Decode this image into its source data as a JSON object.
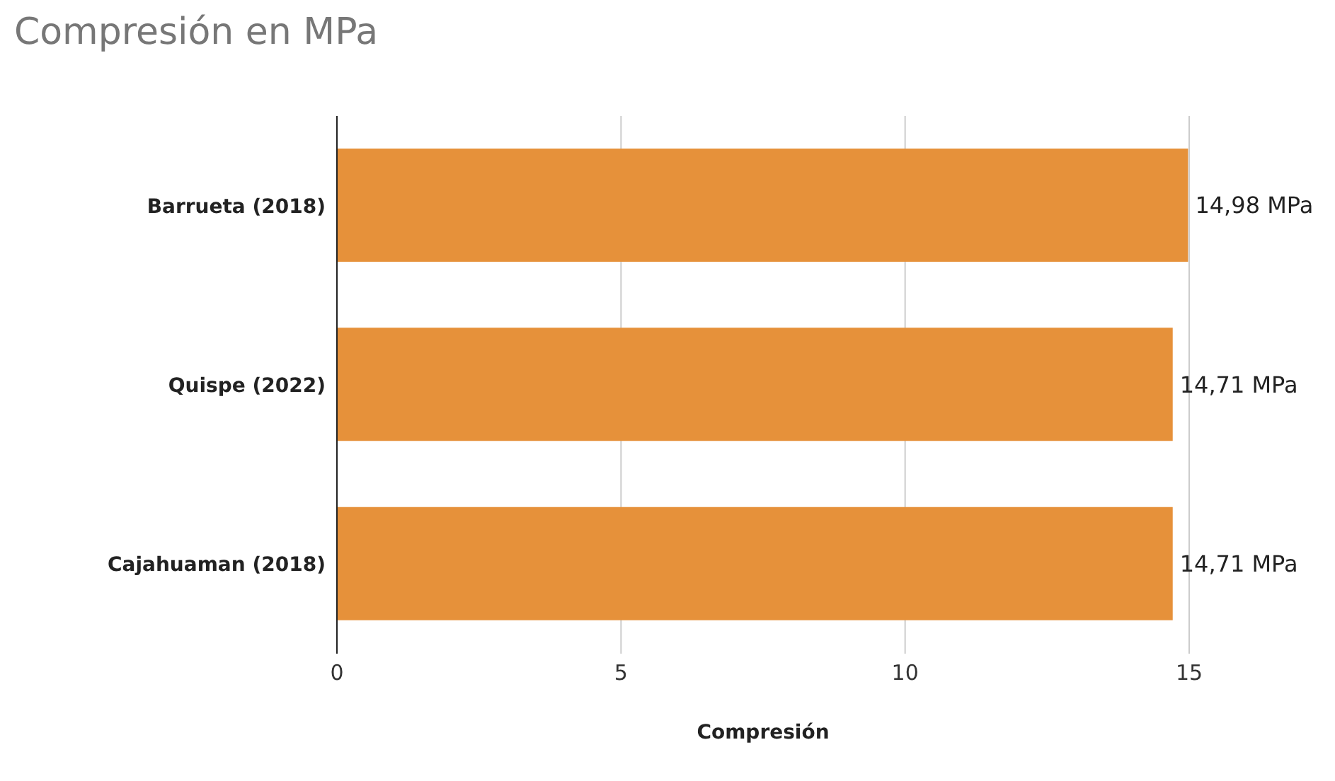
{
  "chart_data": {
    "type": "bar",
    "orientation": "horizontal",
    "title": "Compresión en MPa",
    "xlabel": "Compresión",
    "categories": [
      "Barrueta (2018)",
      "Quispe (2022)",
      "Cajahuaman (2018)"
    ],
    "values": [
      14.98,
      14.71,
      14.71
    ],
    "value_labels": [
      "14,98 MPa",
      "14,71 MPa",
      "14,71 MPa"
    ],
    "color": "#e6913a",
    "xlim": [
      0,
      15
    ],
    "xticks": [
      0,
      5,
      10,
      15
    ],
    "grid": "x",
    "legend": false
  }
}
